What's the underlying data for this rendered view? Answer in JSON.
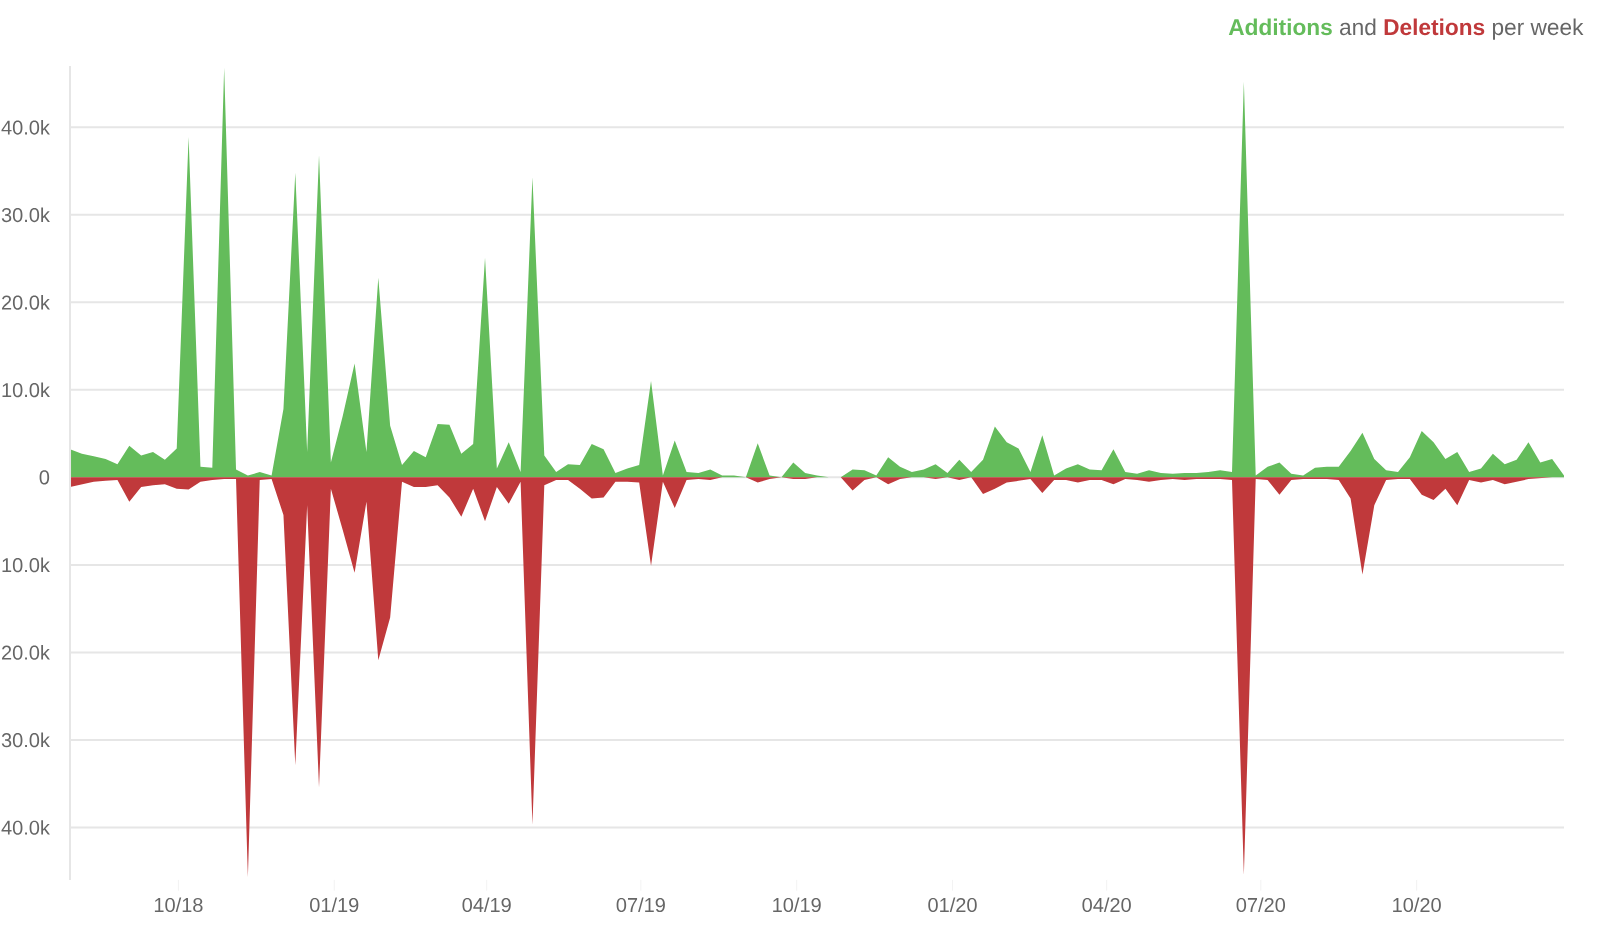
{
  "chart_data": {
    "type": "area",
    "x": [
      "2018-07-29",
      "2018-08-05",
      "2018-08-12",
      "2018-08-19",
      "2018-08-26",
      "2018-09-02",
      "2018-09-09",
      "2018-09-16",
      "2018-09-23",
      "2018-09-30",
      "2018-10-07",
      "2018-10-14",
      "2018-10-21",
      "2018-10-28",
      "2018-11-04",
      "2018-11-11",
      "2018-11-18",
      "2018-11-25",
      "2018-12-02",
      "2018-12-09",
      "2018-12-16",
      "2018-12-23",
      "2018-12-30",
      "2019-01-06",
      "2019-01-13",
      "2019-01-20",
      "2019-01-27",
      "2019-02-03",
      "2019-02-10",
      "2019-02-17",
      "2019-02-24",
      "2019-03-03",
      "2019-03-10",
      "2019-03-17",
      "2019-03-24",
      "2019-03-31",
      "2019-04-07",
      "2019-04-14",
      "2019-04-21",
      "2019-04-28",
      "2019-05-05",
      "2019-05-12",
      "2019-05-19",
      "2019-05-26",
      "2019-06-02",
      "2019-06-09",
      "2019-06-16",
      "2019-06-23",
      "2019-06-30",
      "2019-07-07",
      "2019-07-14",
      "2019-07-21",
      "2019-07-28",
      "2019-08-04",
      "2019-08-11",
      "2019-08-18",
      "2019-08-25",
      "2019-09-01",
      "2019-09-08",
      "2019-09-15",
      "2019-09-22",
      "2019-09-29",
      "2019-10-06",
      "2019-10-13",
      "2019-10-20",
      "2019-10-27",
      "2019-11-03",
      "2019-11-10",
      "2019-11-17",
      "2019-11-24",
      "2019-12-01",
      "2019-12-08",
      "2019-12-15",
      "2019-12-22",
      "2019-12-29",
      "2020-01-05",
      "2020-01-12",
      "2020-01-19",
      "2020-01-26",
      "2020-02-02",
      "2020-02-09",
      "2020-02-16",
      "2020-02-23",
      "2020-03-01",
      "2020-03-08",
      "2020-03-15",
      "2020-03-22",
      "2020-03-29",
      "2020-04-05",
      "2020-04-12",
      "2020-04-19",
      "2020-04-26",
      "2020-05-03",
      "2020-05-10",
      "2020-05-17",
      "2020-05-24",
      "2020-05-31",
      "2020-06-07",
      "2020-06-14",
      "2020-06-21",
      "2020-06-28",
      "2020-07-05",
      "2020-07-12",
      "2020-07-19",
      "2020-07-26",
      "2020-08-02",
      "2020-08-09",
      "2020-08-16",
      "2020-08-23",
      "2020-08-30",
      "2020-09-06",
      "2020-09-13",
      "2020-09-20",
      "2020-09-27",
      "2020-10-04",
      "2020-10-11",
      "2020-10-18",
      "2020-10-25",
      "2020-11-01",
      "2020-11-08",
      "2020-11-15",
      "2020-11-22",
      "2020-11-29",
      "2020-12-06",
      "2020-12-13",
      "2020-12-20",
      "2020-12-27"
    ],
    "series": [
      {
        "name": "Additions",
        "color": "#64bc5b",
        "values": [
          3200,
          2700,
          2400,
          2100,
          1500,
          3600,
          2500,
          2900,
          2000,
          3300,
          38900,
          1200,
          1100,
          46800,
          900,
          200,
          600,
          200,
          7800,
          34800,
          2900,
          36800,
          1700,
          7000,
          13000,
          2900,
          22800,
          5900,
          1400,
          3000,
          2300,
          6100,
          6000,
          2700,
          3800,
          25100,
          1000,
          4000,
          600,
          34300,
          2500,
          600,
          1500,
          1400,
          3800,
          3200,
          500,
          1000,
          1400,
          11000,
          200,
          4200,
          600,
          500,
          900,
          200,
          200,
          0,
          3900,
          200,
          0,
          1700,
          500,
          200,
          0,
          0,
          900,
          800,
          200,
          2300,
          1200,
          600,
          900,
          1500,
          500,
          2000,
          600,
          2000,
          5800,
          4000,
          3300,
          600,
          4800,
          200,
          1000,
          1500,
          900,
          800,
          3200,
          600,
          400,
          800,
          500,
          400,
          500,
          500,
          600,
          800,
          600,
          45200,
          200,
          1200,
          1700,
          400,
          200,
          1100,
          1200,
          1200,
          3000,
          5100,
          2100,
          800,
          600,
          2300,
          5300,
          4000,
          2100,
          2900,
          600,
          1000,
          2700,
          1500,
          2000,
          4000,
          1700,
          2100,
          200
        ]
      },
      {
        "name": "Deletions",
        "color": "#c0393b",
        "values": [
          -1100,
          -800,
          -500,
          -400,
          -300,
          -2800,
          -1100,
          -900,
          -800,
          -1300,
          -1400,
          -500,
          -300,
          -200,
          -200,
          -45700,
          -300,
          -200,
          -4300,
          -32900,
          -3200,
          -35400,
          -1300,
          -6000,
          -10900,
          -2800,
          -20900,
          -16000,
          -500,
          -1100,
          -1100,
          -900,
          -2300,
          -4500,
          -1300,
          -5000,
          -1100,
          -3000,
          -500,
          -39700,
          -900,
          -300,
          -300,
          -1300,
          -2400,
          -2300,
          -500,
          -500,
          -600,
          -10100,
          -500,
          -3500,
          -300,
          -200,
          -300,
          0,
          0,
          0,
          -600,
          -200,
          0,
          -200,
          -200,
          0,
          0,
          0,
          -1500,
          -300,
          0,
          -800,
          -200,
          0,
          0,
          -200,
          0,
          -300,
          0,
          -1900,
          -1300,
          -600,
          -400,
          -200,
          -1800,
          -300,
          -300,
          -600,
          -300,
          -300,
          -800,
          -200,
          -300,
          -500,
          -300,
          -200,
          -300,
          -200,
          -200,
          -200,
          -300,
          -45400,
          -200,
          -300,
          -2000,
          -300,
          -200,
          -200,
          -200,
          -300,
          -2400,
          -11100,
          -3200,
          -300,
          -200,
          -200,
          -2000,
          -2600,
          -1300,
          -3200,
          -300,
          -600,
          -300,
          -800,
          -500,
          -200,
          -100,
          0,
          0
        ]
      }
    ],
    "annotations": [
      "and",
      "per week"
    ],
    "xlim": [
      "2018-07-29",
      "2020-12-27"
    ],
    "xticks": [
      {
        "value": "2018-10-01",
        "label": "10/18"
      },
      {
        "value": "2019-01-01",
        "label": "01/19"
      },
      {
        "value": "2019-04-01",
        "label": "04/19"
      },
      {
        "value": "2019-07-01",
        "label": "07/19"
      },
      {
        "value": "2019-10-01",
        "label": "10/19"
      },
      {
        "value": "2020-01-01",
        "label": "01/20"
      },
      {
        "value": "2020-04-01",
        "label": "04/20"
      },
      {
        "value": "2020-07-01",
        "label": "07/20"
      },
      {
        "value": "2020-10-01",
        "label": "10/20"
      }
    ],
    "ylim": [
      -46000,
      47000
    ],
    "yticks": [
      {
        "value": -40000,
        "label": "40.0k"
      },
      {
        "value": -30000,
        "label": "30.0k"
      },
      {
        "value": -20000,
        "label": "20.0k"
      },
      {
        "value": -10000,
        "label": "10.0k"
      },
      0,
      {
        "value": 10000,
        "label": "10.0k"
      },
      {
        "value": 20000,
        "label": "20.0k"
      },
      {
        "value": 30000,
        "label": "30.0k"
      },
      {
        "value": 40000,
        "label": "40.0k"
      }
    ],
    "grid": "y"
  }
}
